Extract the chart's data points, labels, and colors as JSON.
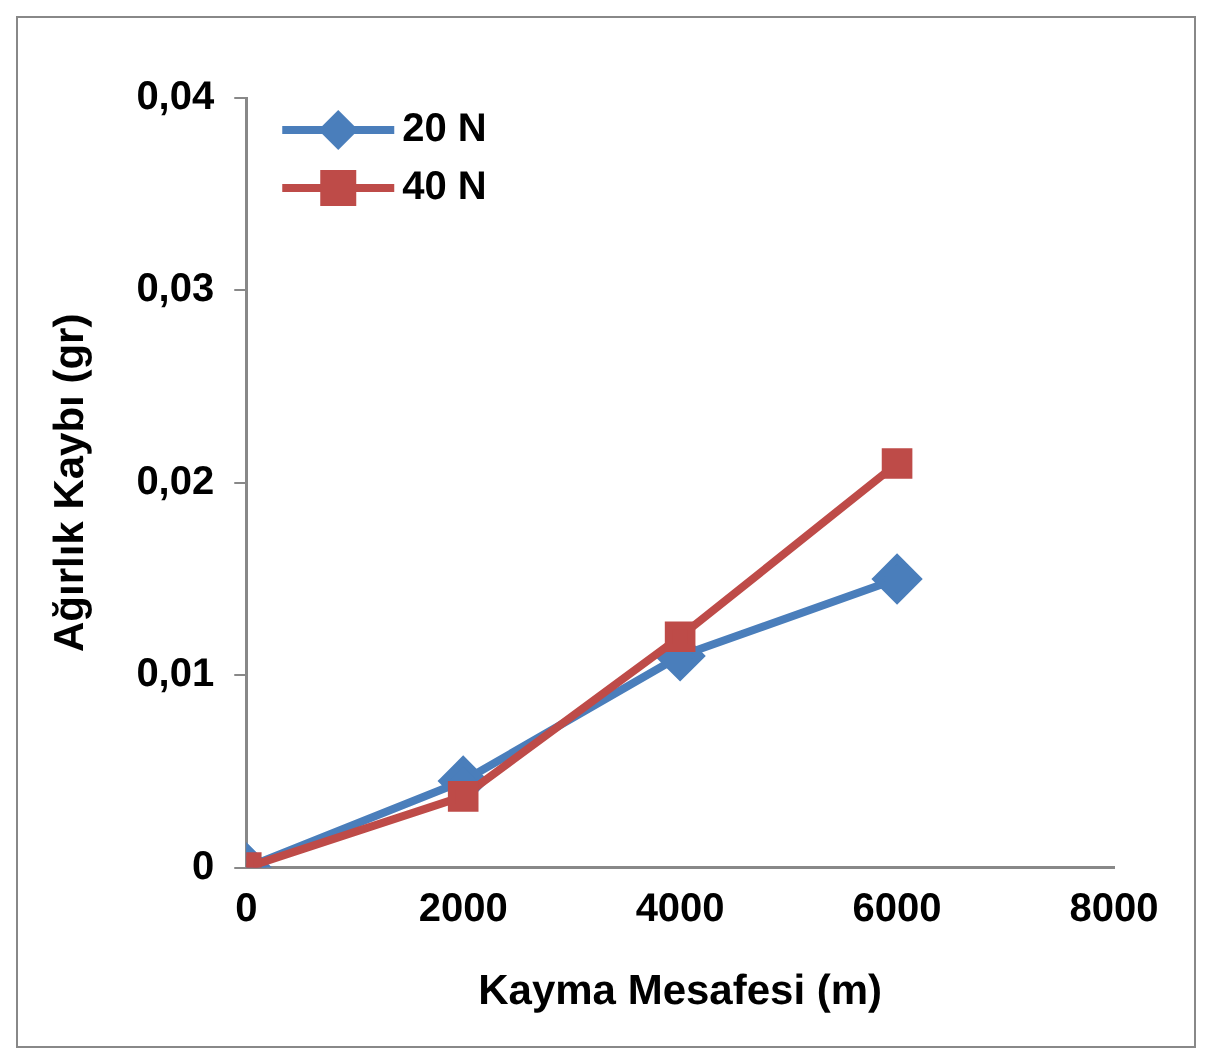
{
  "chart_data": {
    "type": "line",
    "xlabel": "Kayma Mesafesi (m)",
    "ylabel": "Ağırlık Kaybı (gr)",
    "x": [
      0,
      2000,
      4000,
      6000
    ],
    "series": [
      {
        "name": "20 N",
        "color": "#4a7ebb",
        "marker": "diamond",
        "values": [
          0,
          0.0045,
          0.011,
          0.015
        ]
      },
      {
        "name": "40 N",
        "color": "#be4b48",
        "marker": "square",
        "values": [
          0,
          0.0037,
          0.012,
          0.021
        ]
      }
    ],
    "xlim": [
      0,
      8000
    ],
    "xticks": [
      0,
      2000,
      4000,
      6000,
      8000
    ],
    "ylim": [
      0,
      0.04
    ],
    "yticks": [
      {
        "value": 0,
        "label": "0"
      },
      {
        "value": 0.01,
        "label": "0,01"
      },
      {
        "value": 0.02,
        "label": "0,02"
      },
      {
        "value": 0.03,
        "label": "0,03"
      },
      {
        "value": 0.04,
        "label": "0,04"
      }
    ],
    "grid": false,
    "legend": "top left",
    "line_style": "solid"
  }
}
